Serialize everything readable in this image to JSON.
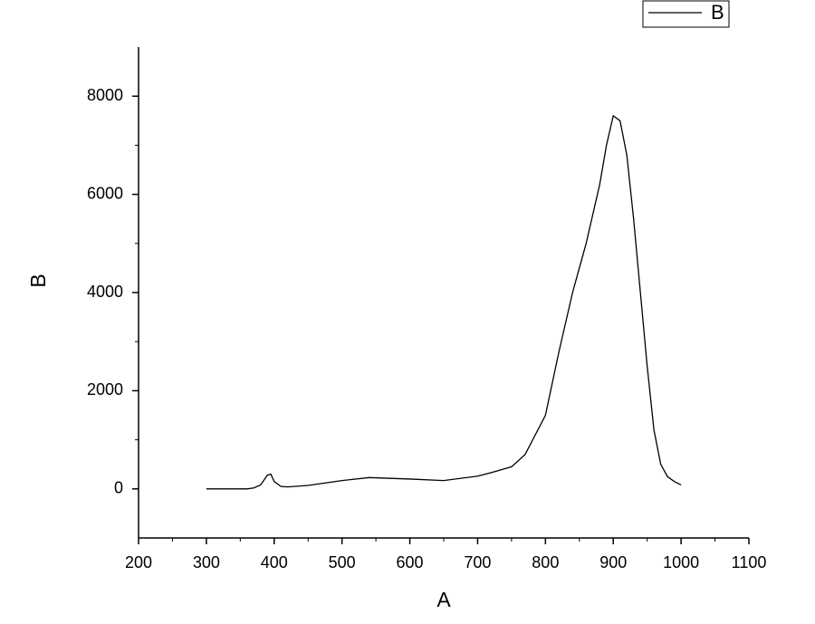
{
  "chart_data": {
    "type": "line",
    "x_label": "A",
    "y_label": "B",
    "x": [
      300,
      320,
      340,
      360,
      370,
      380,
      390,
      395,
      400,
      410,
      420,
      450,
      500,
      540,
      600,
      650,
      700,
      720,
      750,
      770,
      800,
      820,
      840,
      860,
      880,
      890,
      900,
      910,
      920,
      930,
      940,
      950,
      960,
      970,
      980,
      990,
      1000
    ],
    "series": [
      {
        "name": "B",
        "color": "#000000",
        "values": [
          0,
          0,
          0,
          0,
          20,
          80,
          280,
          300,
          150,
          50,
          40,
          70,
          170,
          230,
          200,
          170,
          260,
          330,
          450,
          700,
          1500,
          2800,
          4000,
          5000,
          6200,
          7000,
          7600,
          7500,
          6800,
          5500,
          4000,
          2500,
          1200,
          500,
          250,
          150,
          80
        ]
      }
    ],
    "xlim": [
      200,
      1100
    ],
    "xticks": [
      200,
      300,
      400,
      500,
      600,
      700,
      800,
      900,
      1000,
      1100
    ],
    "ylim": [
      -1000,
      9000
    ],
    "yticks": [
      0,
      2000,
      4000,
      6000,
      8000
    ],
    "grid": false,
    "legend": "top-right"
  }
}
